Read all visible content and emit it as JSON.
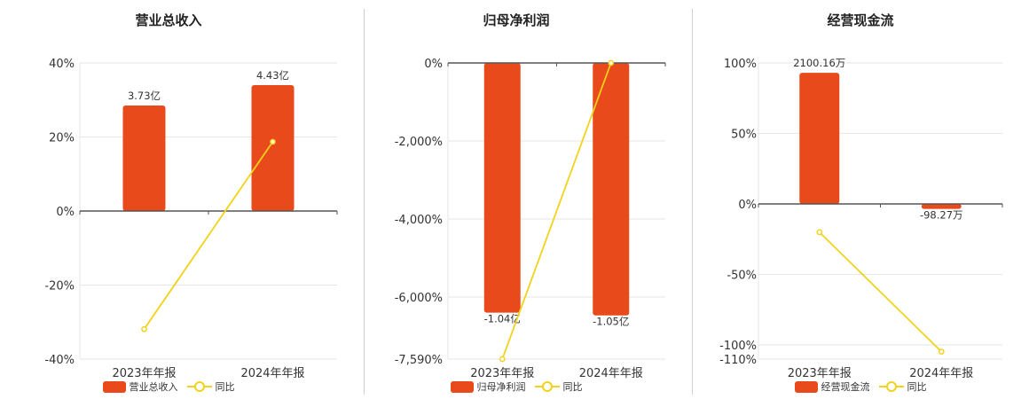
{
  "colors": {
    "bar": "#e84a1c",
    "line": "#f2d21b",
    "axis": "#555555",
    "grid": "#e6e6e6"
  },
  "chart_data": [
    {
      "type": "bar",
      "title": "营业总收入",
      "categories": [
        "2023年年报",
        "2024年年报"
      ],
      "ylim": [
        -40,
        40
      ],
      "yticks": [
        "40%",
        "20%",
        "0%",
        "-20%",
        "-40%"
      ],
      "series": [
        {
          "name": "营业总收入",
          "type": "bar",
          "values": [
            28.5,
            34
          ],
          "labels": [
            "3.73亿",
            "4.43亿"
          ]
        },
        {
          "name": "同比",
          "type": "line",
          "values": [
            -31.9,
            18.7
          ]
        }
      ],
      "legend": "bottom"
    },
    {
      "type": "bar",
      "title": "归母净利润",
      "categories": [
        "2023年年报",
        "2024年年报"
      ],
      "ylim": [
        -7590,
        0
      ],
      "yticks": [
        "0%",
        "-2,000%",
        "-4,000%",
        "-6,000%",
        "-7,590%"
      ],
      "series": [
        {
          "name": "归母净利润",
          "type": "bar",
          "values": [
            -6400,
            -6470
          ],
          "labels": [
            "-1.04亿",
            "-1.05亿"
          ]
        },
        {
          "name": "同比",
          "type": "line",
          "values": [
            -7590,
            0
          ]
        }
      ],
      "legend": "bottom"
    },
    {
      "type": "bar",
      "title": "经营现金流",
      "categories": [
        "2023年年报",
        "2024年年报"
      ],
      "ylim": [
        -110,
        100
      ],
      "yticks": [
        "100%",
        "50%",
        "0%",
        "-50%",
        "-100%",
        "-110%"
      ],
      "series": [
        {
          "name": "经营现金流",
          "type": "bar",
          "values": [
            93,
            -3.5
          ],
          "labels": [
            "2100.16万",
            "-98.27万"
          ]
        },
        {
          "name": "同比",
          "type": "line",
          "values": [
            -20,
            -104.7
          ]
        }
      ],
      "legend": "bottom"
    }
  ]
}
